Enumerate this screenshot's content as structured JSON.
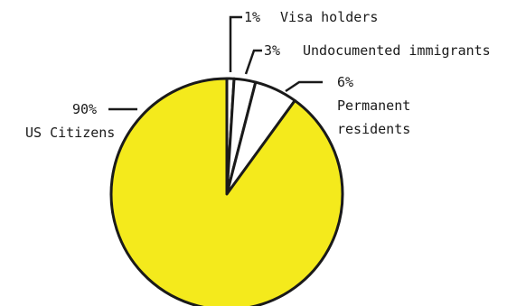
{
  "chart_data": {
    "type": "pie",
    "title": "",
    "slices": [
      {
        "label": "US Citizens",
        "value": 90,
        "display": "90%",
        "color": "#f4ea1c"
      },
      {
        "label": "Visa holders",
        "value": 1,
        "display": "1%",
        "color": "#ffffff"
      },
      {
        "label": "Undocumented immigrants",
        "value": 3,
        "display": "3%",
        "color": "#ffffff"
      },
      {
        "label": "Permanent residents",
        "value": 6,
        "display": "6%",
        "color": "#ffffff"
      }
    ],
    "outline_color": "#1a1a1a"
  },
  "labels": {
    "us_citizens_pct": "90%",
    "us_citizens_name": "US Citizens",
    "visa_pct": "1%",
    "visa_name": "Visa holders",
    "undoc_pct": "3%",
    "undoc_name": "Undocumented immigrants",
    "permanent_pct": "6%",
    "permanent_name_line1": "Permanent",
    "permanent_name_line2": "residents"
  }
}
